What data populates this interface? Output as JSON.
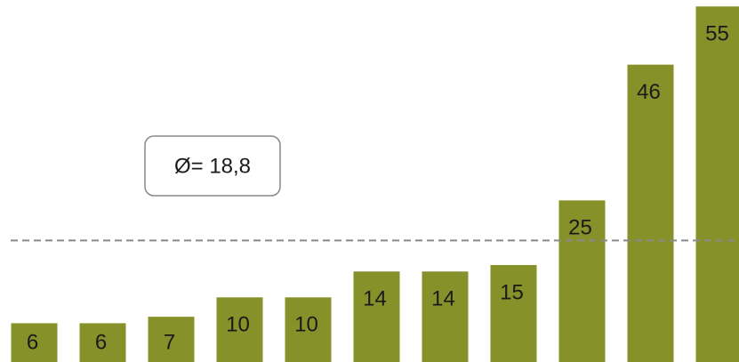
{
  "chart_data": {
    "type": "bar",
    "categories": [
      null,
      null,
      null,
      null,
      null,
      null,
      null,
      null,
      null,
      null,
      null
    ],
    "values": [
      6,
      6,
      7,
      10,
      10,
      14,
      14,
      15,
      25,
      46,
      55
    ],
    "color": "#87912a",
    "ylim": [
      0,
      56
    ],
    "mean": 18.8,
    "mean_label": "Ø= 18,8"
  }
}
